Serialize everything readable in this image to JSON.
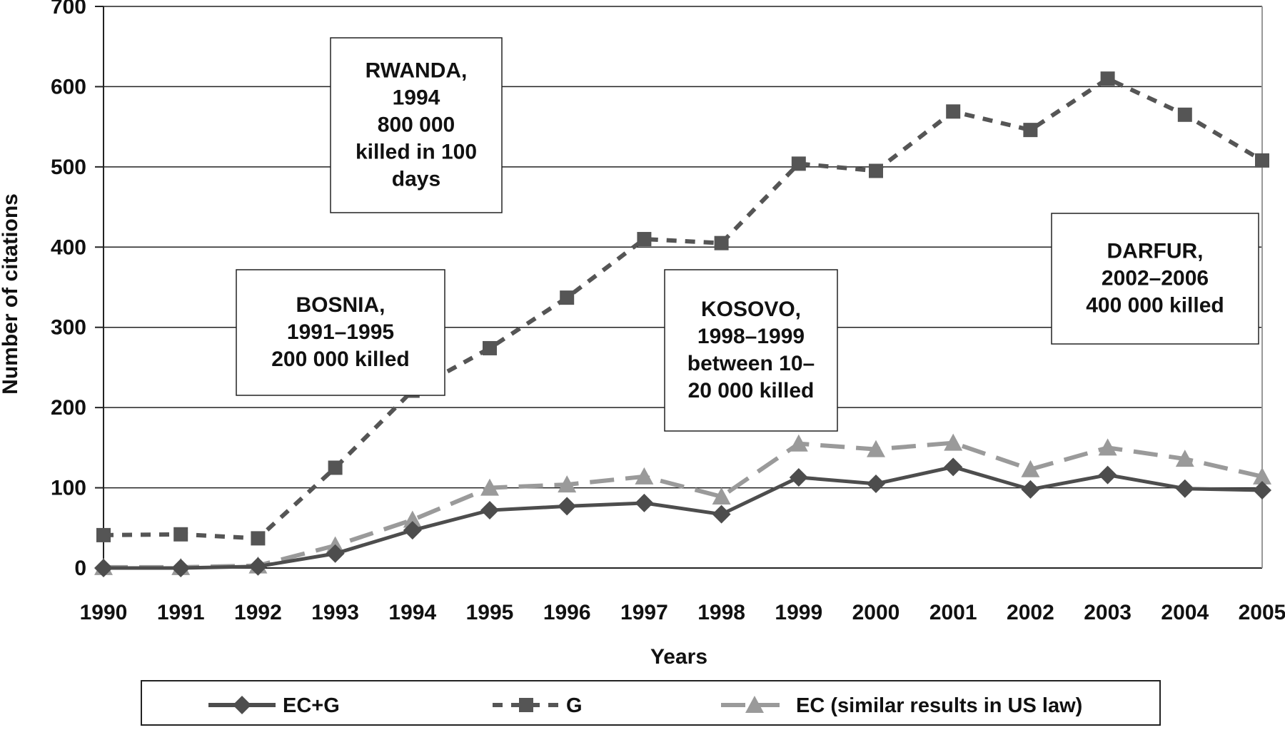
{
  "chart_data": {
    "type": "line",
    "title": "",
    "xlabel": "Years",
    "ylabel": "Number of citations",
    "ylim": [
      0,
      700
    ],
    "yticks": [
      0,
      100,
      200,
      300,
      400,
      500,
      600,
      700
    ],
    "grid": true,
    "categories": [
      "1990",
      "1991",
      "1992",
      "1993",
      "1994",
      "1995",
      "1996",
      "1997",
      "1998",
      "1999",
      "2000",
      "2001",
      "2002",
      "2003",
      "2004",
      "2005"
    ],
    "series": [
      {
        "name": "EC+G",
        "marker": "diamond",
        "line": "solid",
        "color": "#4d4d4d",
        "values": [
          0,
          0,
          2,
          18,
          47,
          72,
          77,
          81,
          67,
          113,
          105,
          126,
          98,
          116,
          99,
          97
        ]
      },
      {
        "name": "G",
        "marker": "square",
        "line": "dotted",
        "color": "#555555",
        "values": [
          41,
          42,
          37,
          125,
          221,
          274,
          337,
          410,
          405,
          504,
          495,
          569,
          546,
          610,
          565,
          508
        ]
      },
      {
        "name": "EC (similar results in US law)",
        "marker": "triangle",
        "line": "dashed",
        "color": "#9a9a9a",
        "values": [
          1,
          1,
          3,
          28,
          60,
          100,
          104,
          114,
          89,
          155,
          148,
          156,
          123,
          150,
          136,
          114
        ]
      }
    ],
    "annotations": [
      {
        "id": "rwanda",
        "lines": [
          "RWANDA,",
          "1994",
          "800 000",
          "killed in 100",
          "days"
        ]
      },
      {
        "id": "bosnia",
        "lines": [
          "BOSNIA,",
          "1991–1995",
          "200 000 killed"
        ]
      },
      {
        "id": "kosovo",
        "lines": [
          "KOSOVO,",
          "1998–1999",
          "between 10–",
          "20 000 killed"
        ]
      },
      {
        "id": "darfur",
        "lines": [
          "DARFUR,",
          "2002–2006",
          "400 000 killed"
        ]
      }
    ],
    "legend_position": "bottom"
  }
}
